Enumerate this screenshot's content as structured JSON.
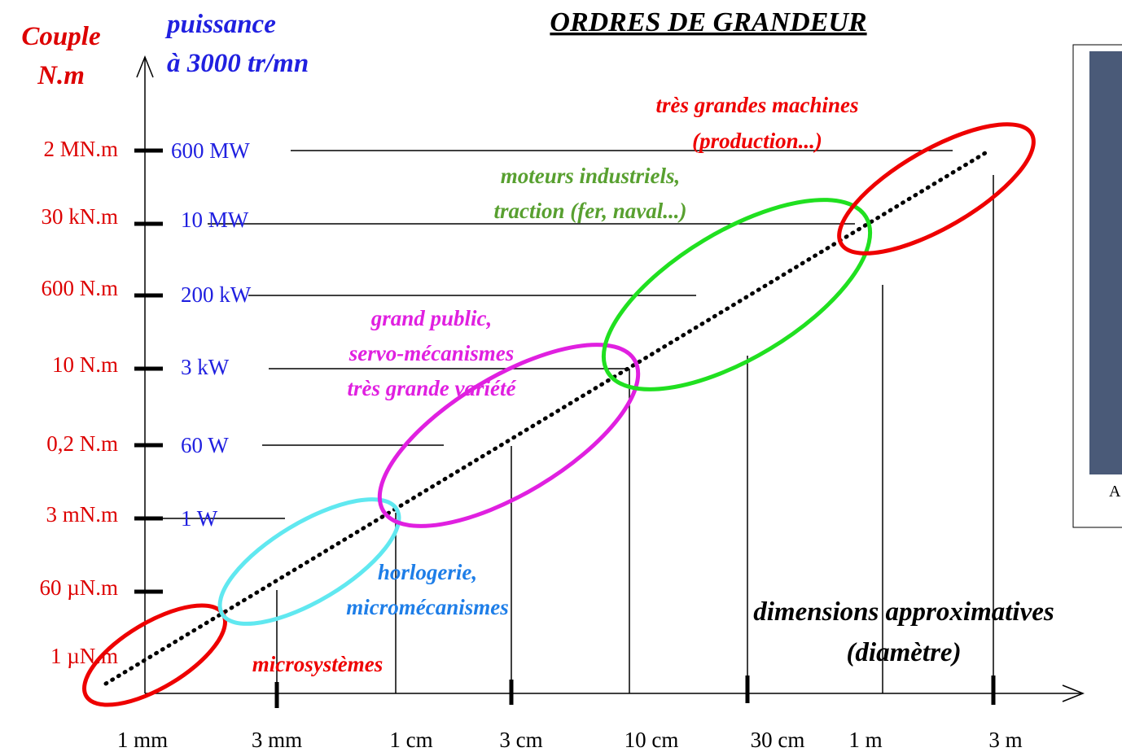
{
  "title": "ORDRES DE GRANDEUR",
  "torque_axis": {
    "label": [
      "Couple",
      "N.m"
    ],
    "ticks": [
      "2 MN.m",
      "30 kN.m",
      "600 N.m",
      "10 N.m",
      "0,2 N.m",
      "3 mN.m",
      "60 µN.m",
      "1 µN.m"
    ]
  },
  "power_axis": {
    "label": [
      "puissance",
      "à 3000 tr/mn"
    ],
    "ticks": [
      "600 MW",
      "10 MW",
      "200 kW",
      "3 kW",
      "60 W",
      "1 W"
    ]
  },
  "size_axis": {
    "label": [
      "dimensions approximatives",
      "(diamètre)"
    ],
    "ticks": [
      "1 mm",
      "3 mm",
      "1 cm",
      "3 cm",
      "10 cm",
      "30 cm",
      "1 m",
      "3 m"
    ]
  },
  "groups": [
    {
      "lines": [
        "microsystèmes"
      ]
    },
    {
      "lines": [
        "horlogerie,",
        "micromécanismes"
      ]
    },
    {
      "lines": [
        "grand public,",
        "servo-mécanismes",
        "très grande variété"
      ]
    },
    {
      "lines": [
        "moteurs industriels,",
        "traction (fer, naval...)"
      ]
    },
    {
      "lines": [
        "très grandes machines",
        "(production...)"
      ]
    }
  ],
  "photo_caption": "A"
}
